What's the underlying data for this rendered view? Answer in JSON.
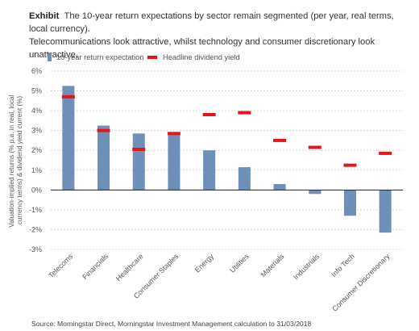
{
  "header": {
    "tag": "Exhibit",
    "line1": "The 10-year return expectations by sector remain segmented (per year, real terms, local currency).",
    "line2": "Telecommunications look attractive, whilst technology and consumer discretionary look unattractive."
  },
  "source": "Source: Morningstar Direct, Morningstar Investment Management calculation to 31/03/2018",
  "colors": {
    "bar": "#6e8fb8",
    "dividend": "#e8141c",
    "zero_line": "#222222"
  },
  "chart_data": {
    "type": "bar",
    "categories": [
      "Telecoms",
      "Financials",
      "Healthcare",
      "Consumer Staples",
      "Energy",
      "Utilities",
      "Materials",
      "Industrials",
      "Info Tech",
      "Consumer Discretionary"
    ],
    "series": [
      {
        "name": "10-year return expectation",
        "kind": "bar",
        "values": [
          5.25,
          3.25,
          2.85,
          2.85,
          2.0,
          1.15,
          0.3,
          -0.2,
          -1.3,
          -2.15
        ]
      },
      {
        "name": "Headline dividend yield",
        "kind": "marker",
        "values": [
          4.7,
          3.0,
          2.05,
          2.85,
          3.8,
          3.9,
          2.5,
          2.15,
          1.25,
          1.85
        ]
      }
    ],
    "ylabel_lines": [
      "Valuation-implied returns (% p.a. in real, local",
      "currency terms) & dividend yield current (%)"
    ],
    "yticks": [
      "6%",
      "5%",
      "4%",
      "3%",
      "2%",
      "1%",
      "0%",
      "-1%",
      "-2%",
      "-3%"
    ],
    "ylim": [
      -3,
      6
    ],
    "grid": "horizontal dotted",
    "legend_position": "top-left"
  }
}
